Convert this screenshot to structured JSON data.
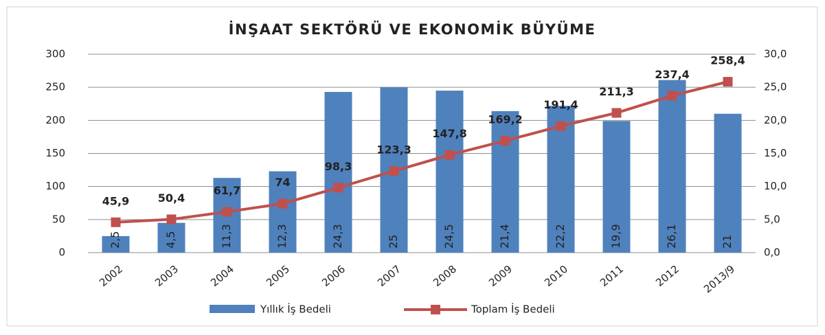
{
  "chart_data": {
    "type": "bar-line",
    "title": "İNŞAAT SEKTÖRÜ VE EKONOMİK BÜYÜME",
    "categories": [
      "2002",
      "2003",
      "2004",
      "2005",
      "2006",
      "2007",
      "2008",
      "2009",
      "2010",
      "2011",
      "2012",
      "2013/9"
    ],
    "series": [
      {
        "name": "Yıllık İş Bedeli",
        "type": "bar",
        "axis": "y2",
        "color": "#4f81bd",
        "values": [
          2.5,
          4.5,
          11.3,
          12.3,
          24.3,
          25,
          24.5,
          21.4,
          22.2,
          19.9,
          26.1,
          21
        ],
        "value_labels": [
          "2,5",
          "4,5",
          "11,3",
          "12,3",
          "24,3",
          "25",
          "24,5",
          "21,4",
          "22,2",
          "19,9",
          "26,1",
          "21"
        ]
      },
      {
        "name": "Toplam İş Bedeli",
        "type": "line",
        "axis": "y",
        "color": "#c0504d",
        "values": [
          45.9,
          50.4,
          61.7,
          74,
          98.3,
          123.3,
          147.8,
          169.2,
          191.4,
          211.3,
          237.4,
          258.4
        ],
        "value_labels": [
          "45,9",
          "50,4",
          "61,7",
          "74",
          "98,3",
          "123,3",
          "147,8",
          "169,2",
          "191,4",
          "211,3",
          "237,4",
          "258,4"
        ]
      }
    ],
    "ylim": [
      0,
      300
    ],
    "yticks": [
      0,
      50,
      100,
      150,
      200,
      250,
      300
    ],
    "y2lim": [
      0,
      30
    ],
    "y2ticks": [
      {
        "value": 0,
        "label": "0,0"
      },
      {
        "value": 5,
        "label": "5,0"
      },
      {
        "value": 10,
        "label": "10,0"
      },
      {
        "value": 15,
        "label": "15,0"
      },
      {
        "value": 20,
        "label": "20,0"
      },
      {
        "value": 25,
        "label": "25,0"
      },
      {
        "value": 30,
        "label": "30,0"
      }
    ],
    "grid": true,
    "legend": "bottom"
  }
}
